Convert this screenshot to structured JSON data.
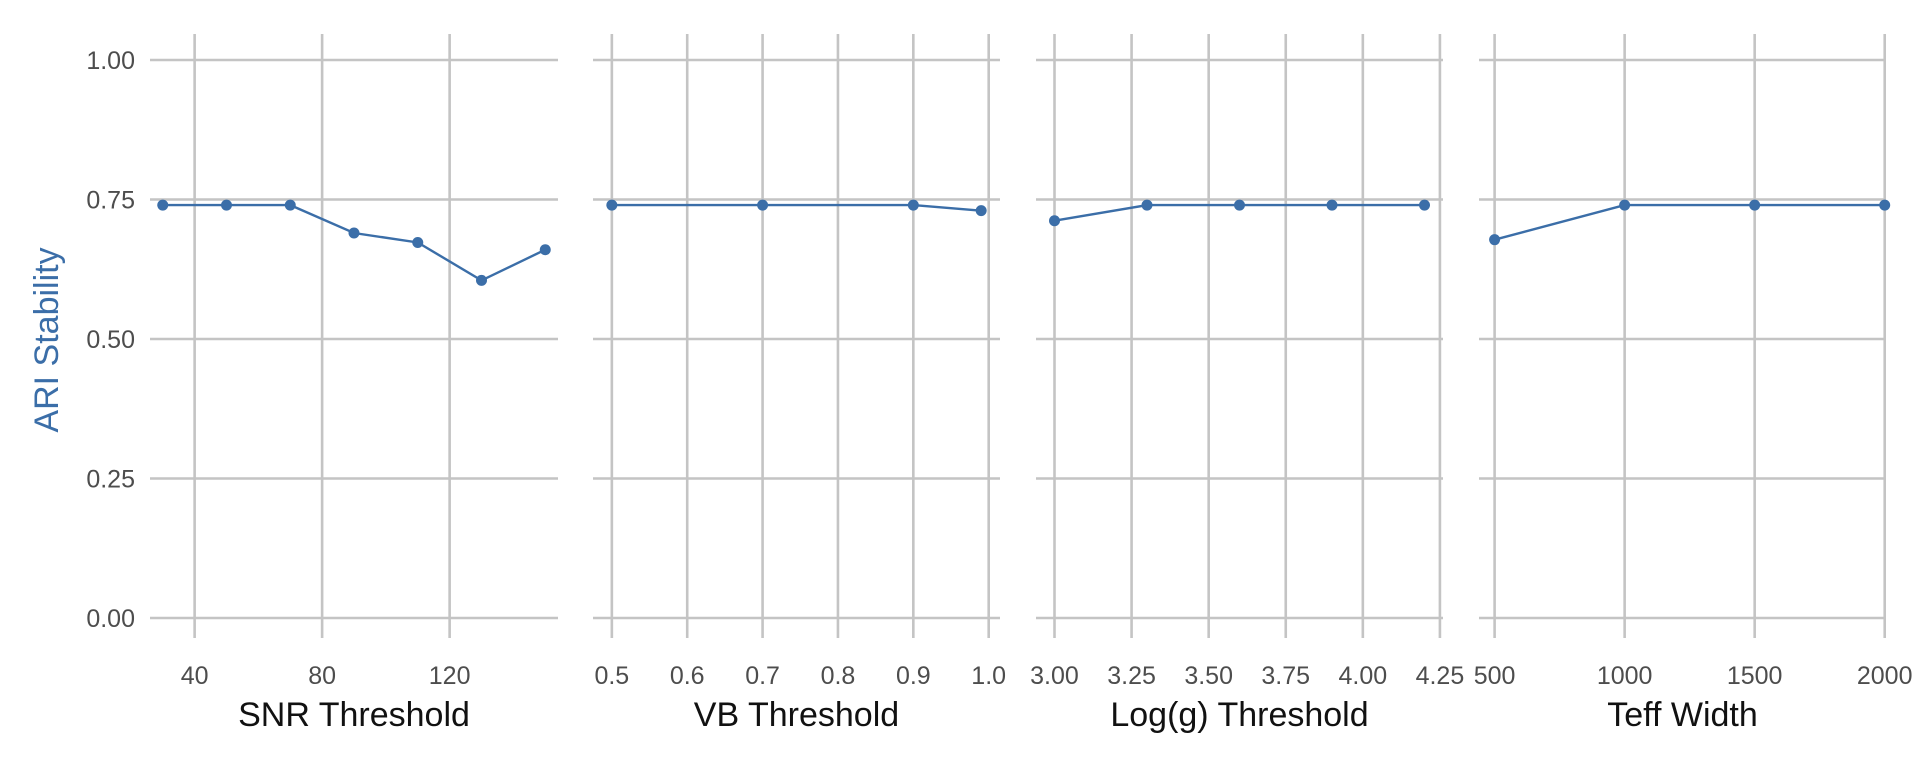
{
  "accent_color": "#3b6ea8",
  "chart_data": {
    "type": "line",
    "ylabel": "ARI Stability",
    "ylim": [
      0,
      1
    ],
    "yticks": [
      "0.00",
      "0.25",
      "0.50",
      "0.75",
      "1.00"
    ],
    "panels": [
      {
        "xlabel": "SNR Threshold",
        "xlim": [
          26,
          154
        ],
        "xticks": [
          40,
          80,
          120
        ],
        "xtick_labels": [
          "40",
          "80",
          "120"
        ],
        "series": [
          {
            "x": [
              30,
              50,
              70,
              90,
              110,
              130,
              150
            ],
            "y": [
              0.74,
              0.74,
              0.74,
              0.69,
              0.673,
              0.605,
              0.66
            ]
          }
        ]
      },
      {
        "xlabel": "VB Threshold",
        "xlim": [
          0.475,
          1.015
        ],
        "xticks": [
          0.5,
          0.6,
          0.7,
          0.8,
          0.9,
          1.0
        ],
        "xtick_labels": [
          "0.5",
          "0.6",
          "0.7",
          "0.8",
          "0.9",
          "1.0"
        ],
        "series": [
          {
            "x": [
              0.5,
              0.7,
              0.9,
              0.99
            ],
            "y": [
              0.74,
              0.74,
              0.74,
              0.73
            ]
          }
        ]
      },
      {
        "xlabel": "Log(g) Threshold",
        "xlim": [
          2.94,
          4.26
        ],
        "xticks": [
          3.0,
          3.25,
          3.5,
          3.75,
          4.0,
          4.25
        ],
        "xtick_labels": [
          "3.00",
          "3.25",
          "3.50",
          "3.75",
          "4.00",
          "4.25"
        ],
        "series": [
          {
            "x": [
              3.0,
              3.3,
              3.6,
              3.9,
              4.2
            ],
            "y": [
              0.712,
              0.74,
              0.74,
              0.74,
              0.74
            ]
          }
        ]
      },
      {
        "xlabel": "Teff Width",
        "xlim": [
          440,
          2005
        ],
        "xticks": [
          500,
          1000,
          1500,
          2000
        ],
        "xtick_labels": [
          "500",
          "1000",
          "1500",
          "2000"
        ],
        "series": [
          {
            "x": [
              500,
              1000,
              1500,
              2000
            ],
            "y": [
              0.678,
              0.74,
              0.74,
              0.74
            ]
          }
        ]
      }
    ]
  }
}
